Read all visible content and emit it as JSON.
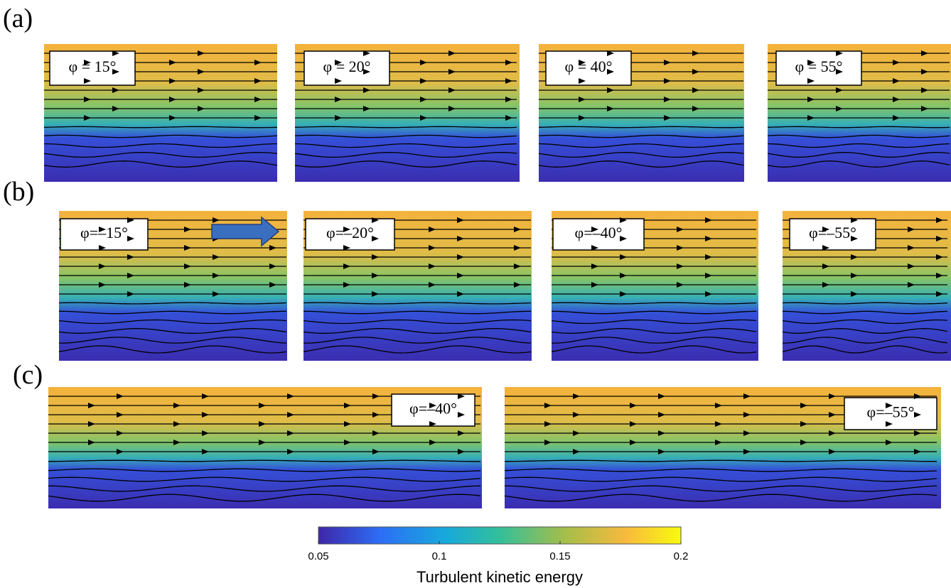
{
  "rows": [
    {
      "label": "(a)",
      "panels": [
        "φ = 15°",
        "φ = 20°",
        "φ = 40°",
        "φ = 55°"
      ]
    },
    {
      "label": "(b)",
      "panels": [
        "φ=–15°",
        "φ=–20°",
        "φ=–40°",
        "φ=–55°"
      ]
    },
    {
      "label": "(c)",
      "panels": [
        "φ=–40°",
        "φ=–55°"
      ]
    }
  ],
  "colorbar": {
    "label": "Turbulent kinetic energy",
    "lim": [
      0.05,
      0.2
    ],
    "ticks": [
      0.05,
      0.1,
      0.15,
      0.2
    ]
  }
}
